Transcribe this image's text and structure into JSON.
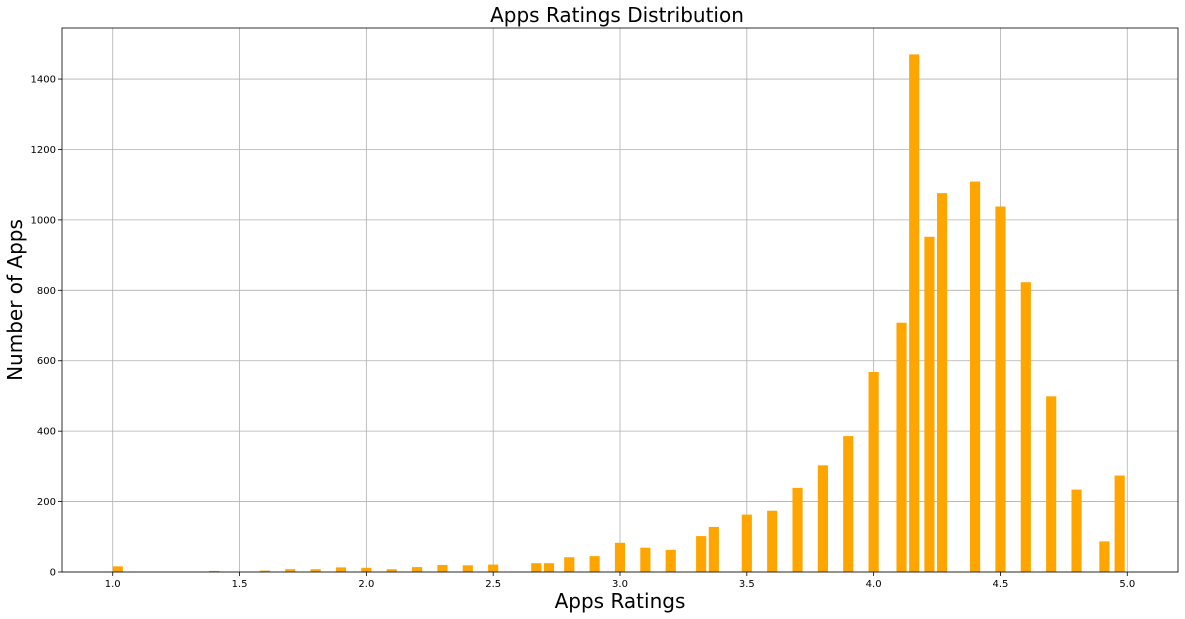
{
  "chart_data": {
    "type": "bar",
    "title": "Apps Ratings Distribution",
    "xlabel": "Apps Ratings",
    "ylabel": "Number of Apps",
    "xlim": [
      0.8,
      5.2
    ],
    "ylim": [
      0,
      1545
    ],
    "xticks": [
      "1.0",
      "1.5",
      "2.0",
      "2.5",
      "3.0",
      "3.5",
      "4.0",
      "4.5",
      "5.0"
    ],
    "yticks": [
      "0",
      "200",
      "400",
      "600",
      "800",
      "1000",
      "1200",
      "1400"
    ],
    "grid": true,
    "bar_color": "#ffa500",
    "bins": [
      {
        "x": 1.0,
        "value": 16
      },
      {
        "x": 1.2,
        "value": 1
      },
      {
        "x": 1.4,
        "value": 3
      },
      {
        "x": 1.5,
        "value": 1
      },
      {
        "x": 1.6,
        "value": 4
      },
      {
        "x": 1.7,
        "value": 8
      },
      {
        "x": 1.8,
        "value": 8
      },
      {
        "x": 1.9,
        "value": 13
      },
      {
        "x": 2.0,
        "value": 12
      },
      {
        "x": 2.1,
        "value": 8
      },
      {
        "x": 2.2,
        "value": 14
      },
      {
        "x": 2.3,
        "value": 20
      },
      {
        "x": 2.4,
        "value": 19
      },
      {
        "x": 2.5,
        "value": 21
      },
      {
        "x": 2.6,
        "value": 25
      },
      {
        "x": 2.7,
        "value": 25
      },
      {
        "x": 2.8,
        "value": 42
      },
      {
        "x": 2.9,
        "value": 45
      },
      {
        "x": 3.0,
        "value": 83
      },
      {
        "x": 3.1,
        "value": 69
      },
      {
        "x": 3.2,
        "value": 63
      },
      {
        "x": 3.3,
        "value": 102
      },
      {
        "x": 3.4,
        "value": 128
      },
      {
        "x": 3.5,
        "value": 163
      },
      {
        "x": 3.6,
        "value": 174
      },
      {
        "x": 3.7,
        "value": 239
      },
      {
        "x": 3.8,
        "value": 303
      },
      {
        "x": 3.9,
        "value": 386
      },
      {
        "x": 4.0,
        "value": 568
      },
      {
        "x": 4.1,
        "value": 708
      },
      {
        "x": 4.2,
        "value": 1470
      },
      {
        "x": 4.2,
        "value": 952
      },
      {
        "x": 4.3,
        "value": 1076
      },
      {
        "x": 4.4,
        "value": 1109
      },
      {
        "x": 4.5,
        "value": 1038
      },
      {
        "x": 4.6,
        "value": 823
      },
      {
        "x": 4.7,
        "value": 499
      },
      {
        "x": 4.8,
        "value": 234
      },
      {
        "x": 4.9,
        "value": 87
      },
      {
        "x": 5.0,
        "value": 274
      }
    ]
  }
}
